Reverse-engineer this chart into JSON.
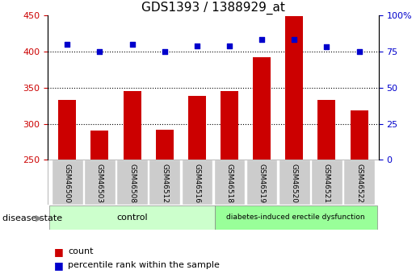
{
  "title": "GDS1393 / 1388929_at",
  "samples": [
    "GSM46500",
    "GSM46503",
    "GSM46508",
    "GSM46512",
    "GSM46516",
    "GSM46518",
    "GSM46519",
    "GSM46520",
    "GSM46521",
    "GSM46522"
  ],
  "counts": [
    333,
    290,
    345,
    292,
    339,
    345,
    392,
    449,
    333,
    318
  ],
  "percentiles": [
    80,
    75,
    80,
    75,
    79,
    79,
    83,
    83,
    78,
    75
  ],
  "ylim_left": [
    250,
    450
  ],
  "ylim_right": [
    0,
    100
  ],
  "yticks_left": [
    250,
    300,
    350,
    400,
    450
  ],
  "yticks_right": [
    0,
    25,
    50,
    75,
    100
  ],
  "grid_values": [
    300,
    350,
    400
  ],
  "bar_color": "#cc0000",
  "dot_color": "#0000cc",
  "bar_width": 0.55,
  "control_label": "control",
  "disease_label": "diabetes-induced erectile dysfunction",
  "group_label": "disease state",
  "legend_count": "count",
  "legend_percentile": "percentile rank within the sample",
  "control_color": "#ccffcc",
  "disease_color": "#99ff99",
  "tick_bg_color": "#cccccc",
  "left_tick_color": "#cc0000",
  "right_tick_color": "#0000cc",
  "title_fontsize": 11,
  "tick_fontsize": 8,
  "label_fontsize": 8,
  "right_tick_label_100": "100%"
}
